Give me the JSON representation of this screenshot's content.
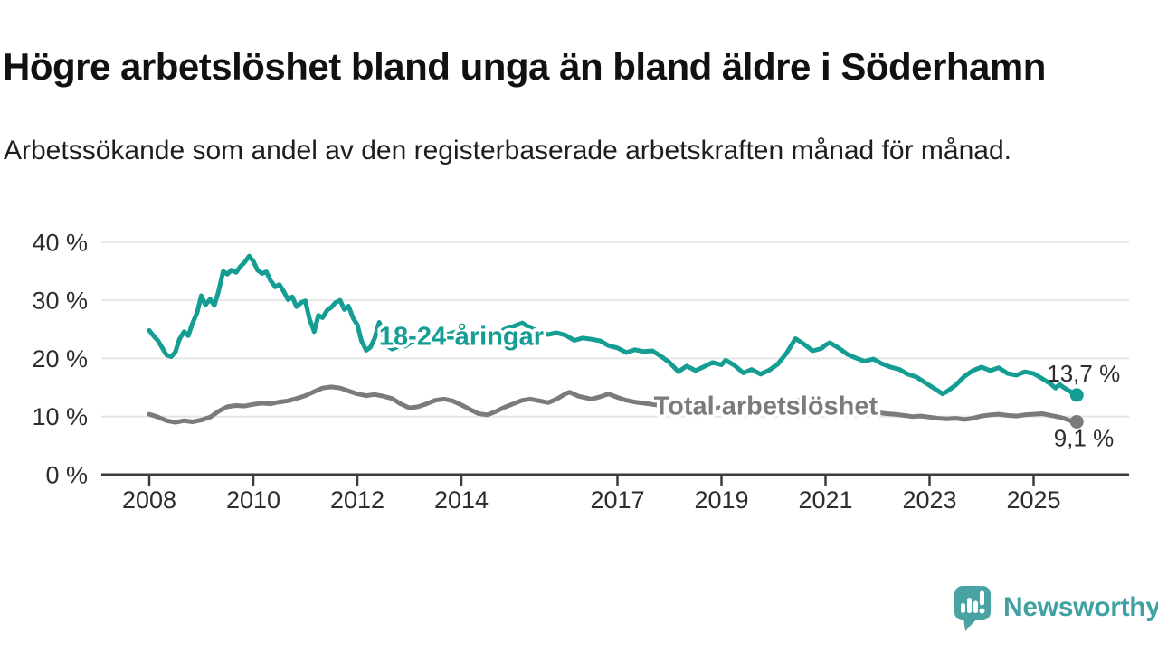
{
  "header": {
    "title": "Högre arbetslöshet bland unga än bland äldre i Söderhamn",
    "subtitle": "Arbetssökande som andel av den registerbaserade arbetskraften månad för månad."
  },
  "footer": {
    "brand": "Newsworthy"
  },
  "colors": {
    "accent_teal": "#149d92",
    "line_gray": "#7b7b7b",
    "axis_dark": "#3c3c3c",
    "grid_light": "#e6e6e6",
    "text_dark": "#2d2d2d",
    "logo_teal": "#4aa3a3",
    "logo_text_teal": "#3fa1a1"
  },
  "chart_data": {
    "type": "line",
    "unit": "%",
    "grid": true,
    "legend": "inline-labels",
    "ylim": [
      0,
      40
    ],
    "x_range": [
      2008,
      2025.83
    ],
    "y_ticks": [
      {
        "value": 0,
        "label": "0 %"
      },
      {
        "value": 10,
        "label": "10 %"
      },
      {
        "value": 20,
        "label": "20 %"
      },
      {
        "value": 30,
        "label": "30 %"
      },
      {
        "value": 40,
        "label": "40 %"
      }
    ],
    "x_ticks": [
      {
        "value": 2008,
        "label": "2008"
      },
      {
        "value": 2010,
        "label": "2010"
      },
      {
        "value": 2012,
        "label": "2012"
      },
      {
        "value": 2014,
        "label": "2014"
      },
      {
        "value": 2017,
        "label": "2017"
      },
      {
        "value": 2019,
        "label": "2019"
      },
      {
        "value": 2021,
        "label": "2021"
      },
      {
        "value": 2023,
        "label": "2023"
      },
      {
        "value": 2025,
        "label": "2025"
      }
    ],
    "series": [
      {
        "id": "youth",
        "name": "18-24-åringar",
        "color": "#149d92",
        "end_label": "13,7 %",
        "last_value": 13.7,
        "label_anchor": {
          "x": 2014.0,
          "y": 23.9
        },
        "points": [
          [
            2008.0,
            24.8
          ],
          [
            2008.08,
            23.9
          ],
          [
            2008.17,
            23.0
          ],
          [
            2008.25,
            21.8
          ],
          [
            2008.33,
            20.6
          ],
          [
            2008.42,
            20.3
          ],
          [
            2008.5,
            21.1
          ],
          [
            2008.58,
            23.3
          ],
          [
            2008.67,
            24.6
          ],
          [
            2008.75,
            23.9
          ],
          [
            2008.83,
            26.0
          ],
          [
            2008.92,
            27.9
          ],
          [
            2009.0,
            30.8
          ],
          [
            2009.08,
            29.2
          ],
          [
            2009.17,
            30.2
          ],
          [
            2009.25,
            29.1
          ],
          [
            2009.33,
            31.5
          ],
          [
            2009.42,
            35.0
          ],
          [
            2009.5,
            34.5
          ],
          [
            2009.58,
            35.2
          ],
          [
            2009.67,
            34.8
          ],
          [
            2009.75,
            35.8
          ],
          [
            2009.83,
            36.5
          ],
          [
            2009.92,
            37.6
          ],
          [
            2010.0,
            36.7
          ],
          [
            2010.08,
            35.2
          ],
          [
            2010.17,
            34.6
          ],
          [
            2010.25,
            34.9
          ],
          [
            2010.33,
            33.4
          ],
          [
            2010.42,
            32.3
          ],
          [
            2010.5,
            32.7
          ],
          [
            2010.58,
            31.6
          ],
          [
            2010.67,
            30.1
          ],
          [
            2010.75,
            30.6
          ],
          [
            2010.83,
            28.9
          ],
          [
            2010.92,
            29.6
          ],
          [
            2011.0,
            29.9
          ],
          [
            2011.08,
            26.8
          ],
          [
            2011.17,
            24.6
          ],
          [
            2011.25,
            27.4
          ],
          [
            2011.33,
            27.0
          ],
          [
            2011.42,
            28.3
          ],
          [
            2011.5,
            28.8
          ],
          [
            2011.58,
            29.6
          ],
          [
            2011.67,
            30.0
          ],
          [
            2011.75,
            28.4
          ],
          [
            2011.83,
            29.0
          ],
          [
            2011.92,
            26.9
          ],
          [
            2012.0,
            25.8
          ],
          [
            2012.08,
            23.0
          ],
          [
            2012.17,
            21.4
          ],
          [
            2012.25,
            21.9
          ],
          [
            2012.33,
            23.4
          ],
          [
            2012.42,
            26.2
          ],
          [
            2012.5,
            24.0
          ],
          [
            2012.58,
            22.2
          ],
          [
            2012.67,
            21.6
          ],
          [
            2012.75,
            21.9
          ],
          [
            2012.83,
            22.4
          ],
          [
            2012.92,
            22.1
          ],
          [
            2013.0,
            22.6
          ],
          [
            2013.17,
            23.3
          ],
          [
            2013.33,
            23.8
          ],
          [
            2013.5,
            23.2
          ],
          [
            2013.67,
            24.0
          ],
          [
            2013.83,
            24.4
          ],
          [
            2014.0,
            24.8
          ],
          [
            2014.17,
            24.1
          ],
          [
            2014.33,
            24.5
          ],
          [
            2014.5,
            23.8
          ],
          [
            2014.67,
            24.2
          ],
          [
            2014.83,
            25.0
          ],
          [
            2015.0,
            25.5
          ],
          [
            2015.17,
            26.1
          ],
          [
            2015.33,
            25.2
          ],
          [
            2015.5,
            24.6
          ],
          [
            2015.67,
            24.1
          ],
          [
            2015.83,
            24.4
          ],
          [
            2016.0,
            24.0
          ],
          [
            2016.17,
            23.1
          ],
          [
            2016.33,
            23.5
          ],
          [
            2016.5,
            23.3
          ],
          [
            2016.67,
            23.0
          ],
          [
            2016.83,
            22.2
          ],
          [
            2017.0,
            21.8
          ],
          [
            2017.17,
            21.0
          ],
          [
            2017.33,
            21.5
          ],
          [
            2017.5,
            21.2
          ],
          [
            2017.67,
            21.3
          ],
          [
            2017.83,
            20.4
          ],
          [
            2018.0,
            19.3
          ],
          [
            2018.17,
            17.7
          ],
          [
            2018.33,
            18.7
          ],
          [
            2018.5,
            17.9
          ],
          [
            2018.67,
            18.6
          ],
          [
            2018.83,
            19.3
          ],
          [
            2019.0,
            18.9
          ],
          [
            2019.08,
            19.7
          ],
          [
            2019.25,
            18.8
          ],
          [
            2019.42,
            17.5
          ],
          [
            2019.58,
            18.1
          ],
          [
            2019.75,
            17.3
          ],
          [
            2019.92,
            18.0
          ],
          [
            2020.08,
            19.0
          ],
          [
            2020.25,
            20.9
          ],
          [
            2020.42,
            23.4
          ],
          [
            2020.58,
            22.5
          ],
          [
            2020.75,
            21.3
          ],
          [
            2020.92,
            21.7
          ],
          [
            2021.0,
            22.3
          ],
          [
            2021.08,
            22.7
          ],
          [
            2021.25,
            21.8
          ],
          [
            2021.42,
            20.7
          ],
          [
            2021.58,
            20.1
          ],
          [
            2021.75,
            19.5
          ],
          [
            2021.92,
            19.9
          ],
          [
            2022.08,
            19.1
          ],
          [
            2022.25,
            18.5
          ],
          [
            2022.42,
            18.1
          ],
          [
            2022.58,
            17.3
          ],
          [
            2022.75,
            16.8
          ],
          [
            2022.92,
            15.8
          ],
          [
            2023.08,
            14.9
          ],
          [
            2023.25,
            13.9
          ],
          [
            2023.33,
            14.3
          ],
          [
            2023.5,
            15.4
          ],
          [
            2023.67,
            16.9
          ],
          [
            2023.83,
            17.9
          ],
          [
            2024.0,
            18.5
          ],
          [
            2024.17,
            17.9
          ],
          [
            2024.33,
            18.4
          ],
          [
            2024.5,
            17.4
          ],
          [
            2024.67,
            17.1
          ],
          [
            2024.83,
            17.7
          ],
          [
            2025.0,
            17.4
          ],
          [
            2025.17,
            16.5
          ],
          [
            2025.33,
            15.6
          ],
          [
            2025.42,
            14.9
          ],
          [
            2025.5,
            15.5
          ],
          [
            2025.58,
            15.0
          ],
          [
            2025.67,
            14.5
          ],
          [
            2025.83,
            13.7
          ]
        ]
      },
      {
        "id": "total",
        "name": "Total arbetslöshet",
        "color": "#7b7b7b",
        "end_label": "9,1 %",
        "last_value": 9.1,
        "label_anchor": {
          "x": 2019.85,
          "y": 11.9
        },
        "points": [
          [
            2008.0,
            10.4
          ],
          [
            2008.17,
            9.9
          ],
          [
            2008.33,
            9.3
          ],
          [
            2008.5,
            9.0
          ],
          [
            2008.67,
            9.3
          ],
          [
            2008.83,
            9.1
          ],
          [
            2009.0,
            9.4
          ],
          [
            2009.17,
            9.9
          ],
          [
            2009.33,
            10.9
          ],
          [
            2009.5,
            11.7
          ],
          [
            2009.67,
            11.9
          ],
          [
            2009.83,
            11.8
          ],
          [
            2010.0,
            12.1
          ],
          [
            2010.17,
            12.3
          ],
          [
            2010.33,
            12.2
          ],
          [
            2010.5,
            12.5
          ],
          [
            2010.67,
            12.7
          ],
          [
            2010.83,
            13.1
          ],
          [
            2011.0,
            13.6
          ],
          [
            2011.17,
            14.3
          ],
          [
            2011.33,
            14.9
          ],
          [
            2011.5,
            15.1
          ],
          [
            2011.67,
            14.9
          ],
          [
            2011.83,
            14.4
          ],
          [
            2012.0,
            13.9
          ],
          [
            2012.17,
            13.6
          ],
          [
            2012.33,
            13.8
          ],
          [
            2012.5,
            13.5
          ],
          [
            2012.67,
            13.1
          ],
          [
            2012.83,
            12.2
          ],
          [
            2013.0,
            11.5
          ],
          [
            2013.17,
            11.7
          ],
          [
            2013.33,
            12.2
          ],
          [
            2013.5,
            12.8
          ],
          [
            2013.67,
            13.0
          ],
          [
            2013.83,
            12.7
          ],
          [
            2014.0,
            12.0
          ],
          [
            2014.17,
            11.2
          ],
          [
            2014.33,
            10.5
          ],
          [
            2014.5,
            10.3
          ],
          [
            2014.67,
            10.9
          ],
          [
            2014.83,
            11.6
          ],
          [
            2015.0,
            12.2
          ],
          [
            2015.17,
            12.8
          ],
          [
            2015.33,
            13.0
          ],
          [
            2015.5,
            12.7
          ],
          [
            2015.67,
            12.4
          ],
          [
            2015.83,
            13.0
          ],
          [
            2016.0,
            13.9
          ],
          [
            2016.08,
            14.2
          ],
          [
            2016.25,
            13.5
          ],
          [
            2016.5,
            13.0
          ],
          [
            2016.67,
            13.4
          ],
          [
            2016.83,
            13.9
          ],
          [
            2017.0,
            13.3
          ],
          [
            2017.17,
            12.8
          ],
          [
            2017.33,
            12.5
          ],
          [
            2017.5,
            12.3
          ],
          [
            2017.67,
            12.1
          ],
          [
            2017.83,
            11.9
          ],
          [
            2018.0,
            11.7
          ],
          [
            2018.17,
            12.0
          ],
          [
            2018.33,
            12.2
          ],
          [
            2018.5,
            11.9
          ],
          [
            2018.67,
            11.5
          ],
          [
            2018.83,
            11.3
          ],
          [
            2019.0,
            11.6
          ],
          [
            2019.17,
            11.9
          ],
          [
            2019.33,
            11.7
          ],
          [
            2019.5,
            11.4
          ],
          [
            2019.67,
            11.1
          ],
          [
            2019.83,
            11.0
          ],
          [
            2020.0,
            11.3
          ],
          [
            2020.17,
            11.9
          ],
          [
            2020.33,
            12.6
          ],
          [
            2020.5,
            12.8
          ],
          [
            2020.67,
            12.4
          ],
          [
            2020.83,
            12.2
          ],
          [
            2021.0,
            12.4
          ],
          [
            2021.17,
            12.1
          ],
          [
            2021.33,
            11.8
          ],
          [
            2021.5,
            11.4
          ],
          [
            2021.67,
            11.1
          ],
          [
            2021.83,
            10.9
          ],
          [
            2022.0,
            10.7
          ],
          [
            2022.17,
            10.5
          ],
          [
            2022.33,
            10.4
          ],
          [
            2022.5,
            10.2
          ],
          [
            2022.67,
            10.0
          ],
          [
            2022.83,
            10.1
          ],
          [
            2023.0,
            9.9
          ],
          [
            2023.17,
            9.7
          ],
          [
            2023.33,
            9.6
          ],
          [
            2023.5,
            9.7
          ],
          [
            2023.67,
            9.5
          ],
          [
            2023.83,
            9.7
          ],
          [
            2024.0,
            10.1
          ],
          [
            2024.17,
            10.3
          ],
          [
            2024.33,
            10.4
          ],
          [
            2024.5,
            10.2
          ],
          [
            2024.67,
            10.1
          ],
          [
            2024.83,
            10.3
          ],
          [
            2025.0,
            10.4
          ],
          [
            2025.17,
            10.5
          ],
          [
            2025.33,
            10.2
          ],
          [
            2025.5,
            9.9
          ],
          [
            2025.58,
            9.7
          ],
          [
            2025.67,
            9.4
          ],
          [
            2025.83,
            9.1
          ]
        ]
      }
    ]
  }
}
